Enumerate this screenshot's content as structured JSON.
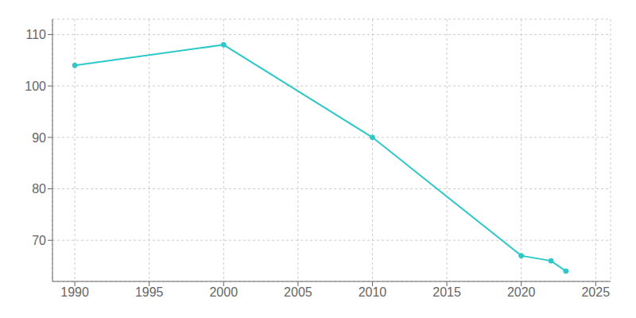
{
  "chart_data": {
    "type": "line",
    "x": [
      1990,
      2000,
      2010,
      2020,
      2022,
      2023
    ],
    "values": [
      104,
      108,
      90,
      67,
      66,
      64
    ],
    "color": "#2ec8c8",
    "marker": "circle",
    "xlim": [
      1988.5,
      2026
    ],
    "ylim": [
      62,
      113
    ],
    "xticks": [
      1990,
      1995,
      2000,
      2005,
      2010,
      2015,
      2020,
      2025
    ],
    "yticks": [
      70,
      80,
      90,
      100,
      110
    ],
    "grid": true
  }
}
